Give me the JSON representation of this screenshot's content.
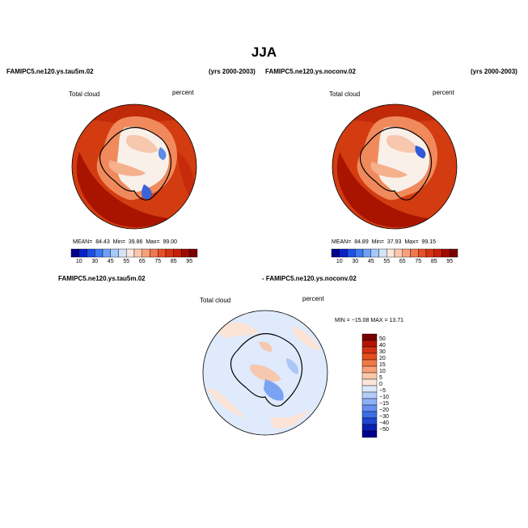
{
  "page_title": "JJA",
  "panels": [
    {
      "case_name": "FAMIPC5.ne120.ys.tau5m.02",
      "years": "(yrs 2000-2003)",
      "variable": "Total cloud",
      "units": "percent",
      "stats": {
        "mean_label": "MEAN=",
        "mean": "84.43",
        "min_label": "Min=",
        "min": "39.86",
        "max_label": "Max=",
        "max": "99.00"
      }
    },
    {
      "case_name": "FAMIPC5.ne120.ys.noconv.02",
      "years": "(yrs 2000-2003)",
      "variable": "Total cloud",
      "units": "percent",
      "stats": {
        "mean_label": "MEAN=",
        "mean": "84.89",
        "min_label": "Min=",
        "min": "37.93",
        "max_label": "Max=",
        "max": "99.15"
      }
    }
  ],
  "diff_panel": {
    "case_a": "FAMIPC5.ne120.ys.tau5m.02",
    "case_b": "- FAMIPC5.ne120.ys.noconv.02",
    "variable": "Total cloud",
    "units": "percent",
    "minmax_label": "MIN = −15.08  MAX =  13.71"
  },
  "abs_colorbar": {
    "labels": [
      "10",
      "30",
      "45",
      "55",
      "65",
      "75",
      "85",
      "95"
    ],
    "colors": [
      "#00008c",
      "#0a1fc8",
      "#1e4ee6",
      "#3c78f0",
      "#6ea0f5",
      "#a5c8f8",
      "#d2e4fa",
      "#fae6dc",
      "#fcc8b0",
      "#f8a07a",
      "#f07850",
      "#e65028",
      "#d73214",
      "#c81e0a",
      "#a00a00",
      "#7a0000"
    ]
  },
  "diff_colorbar": {
    "labels": [
      "50",
      "40",
      "30",
      "20",
      "15",
      "10",
      "5",
      "0",
      "−5",
      "−10",
      "−15",
      "−20",
      "−30",
      "−40",
      "−50"
    ],
    "colors": [
      "#7a0000",
      "#b41400",
      "#d23214",
      "#e6501e",
      "#f07846",
      "#f8a078",
      "#fcc8aa",
      "#fae6dc",
      "#dce8fa",
      "#b4ccf8",
      "#8cb0f5",
      "#6490f0",
      "#3c6ee6",
      "#1e46d2",
      "#0a1eb4",
      "#00008c"
    ]
  },
  "colors": {
    "ocean_high_cloud": "#d23c10",
    "ocean_very_high": "#a81400",
    "antarctica_white": "#faf0ea",
    "diff_base": "#dfeafc"
  }
}
